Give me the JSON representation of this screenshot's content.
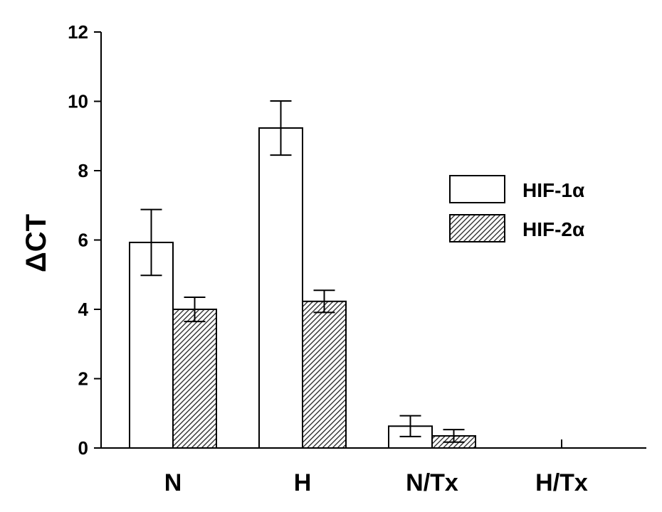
{
  "chart_data": {
    "type": "bar",
    "title": "",
    "xlabel": "",
    "ylabel": "ΔCT",
    "ylim": [
      0,
      12
    ],
    "yticks": [
      0,
      2,
      4,
      6,
      8,
      10,
      12
    ],
    "categories": [
      "N",
      "H",
      "N/Tx",
      "H/Tx"
    ],
    "series": [
      {
        "name": "HIF-1α",
        "values": [
          5.93,
          9.23,
          0.63,
          0
        ],
        "errors": [
          0.95,
          0.78,
          0.3,
          0
        ],
        "fill": "#ffffff"
      },
      {
        "name": "HIF-2α",
        "values": [
          4.0,
          4.23,
          0.35,
          0
        ],
        "errors": [
          0.35,
          0.32,
          0.18,
          0
        ],
        "fill": "hatch"
      }
    ],
    "grid": false,
    "legend_position": "right-middle"
  }
}
